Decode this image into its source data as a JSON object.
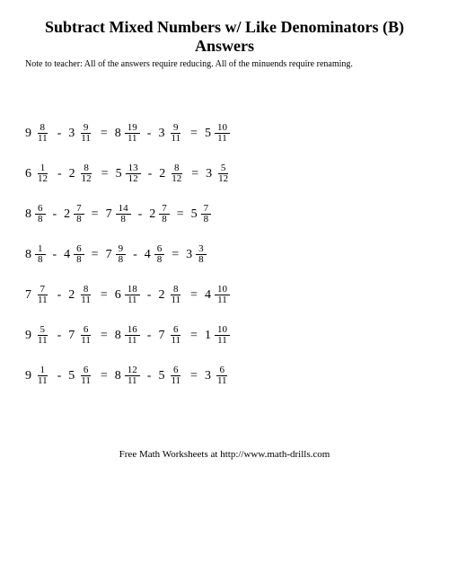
{
  "title": "Subtract Mixed Numbers w/ Like Denominators (B) Answers",
  "subtitle": "Note to teacher: All of the answers require reducing. All of the minuends require renaming.",
  "footer": "Free Math Worksheets at http://www.math-drills.com",
  "minus": "-",
  "equals": "=",
  "problems": [
    {
      "a": {
        "w": "9",
        "n": "8",
        "d": "11"
      },
      "b": {
        "w": "3",
        "n": "9",
        "d": "11"
      },
      "c": {
        "w": "8",
        "n": "19",
        "d": "11"
      },
      "d": {
        "w": "3",
        "n": "9",
        "d": "11"
      },
      "e": {
        "w": "5",
        "n": "10",
        "d": "11"
      }
    },
    {
      "a": {
        "w": "6",
        "n": "1",
        "d": "12"
      },
      "b": {
        "w": "2",
        "n": "8",
        "d": "12"
      },
      "c": {
        "w": "5",
        "n": "13",
        "d": "12"
      },
      "d": {
        "w": "2",
        "n": "8",
        "d": "12"
      },
      "e": {
        "w": "3",
        "n": "5",
        "d": "12"
      }
    },
    {
      "a": {
        "w": "8",
        "n": "6",
        "d": "8"
      },
      "b": {
        "w": "2",
        "n": "7",
        "d": "8"
      },
      "c": {
        "w": "7",
        "n": "14",
        "d": "8"
      },
      "d": {
        "w": "2",
        "n": "7",
        "d": "8"
      },
      "e": {
        "w": "5",
        "n": "7",
        "d": "8"
      }
    },
    {
      "a": {
        "w": "8",
        "n": "1",
        "d": "8"
      },
      "b": {
        "w": "4",
        "n": "6",
        "d": "8"
      },
      "c": {
        "w": "7",
        "n": "9",
        "d": "8"
      },
      "d": {
        "w": "4",
        "n": "6",
        "d": "8"
      },
      "e": {
        "w": "3",
        "n": "3",
        "d": "8"
      }
    },
    {
      "a": {
        "w": "7",
        "n": "7",
        "d": "11"
      },
      "b": {
        "w": "2",
        "n": "8",
        "d": "11"
      },
      "c": {
        "w": "6",
        "n": "18",
        "d": "11"
      },
      "d": {
        "w": "2",
        "n": "8",
        "d": "11"
      },
      "e": {
        "w": "4",
        "n": "10",
        "d": "11"
      }
    },
    {
      "a": {
        "w": "9",
        "n": "5",
        "d": "11"
      },
      "b": {
        "w": "7",
        "n": "6",
        "d": "11"
      },
      "c": {
        "w": "8",
        "n": "16",
        "d": "11"
      },
      "d": {
        "w": "7",
        "n": "6",
        "d": "11"
      },
      "e": {
        "w": "1",
        "n": "10",
        "d": "11"
      }
    },
    {
      "a": {
        "w": "9",
        "n": "1",
        "d": "11"
      },
      "b": {
        "w": "5",
        "n": "6",
        "d": "11"
      },
      "c": {
        "w": "8",
        "n": "12",
        "d": "11"
      },
      "d": {
        "w": "5",
        "n": "6",
        "d": "11"
      },
      "e": {
        "w": "3",
        "n": "6",
        "d": "11"
      }
    }
  ]
}
